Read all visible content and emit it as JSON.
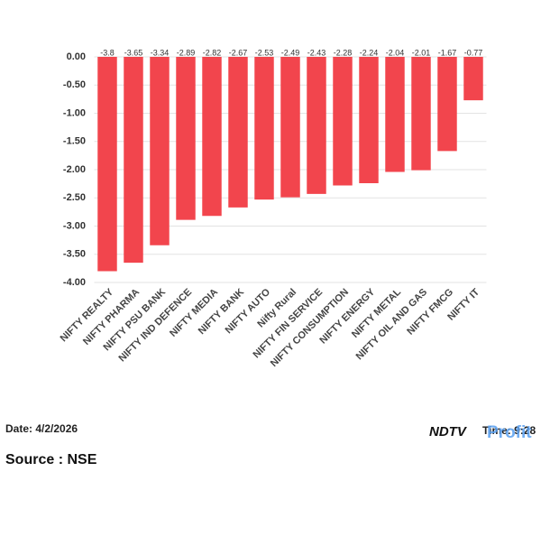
{
  "chart_data": {
    "type": "bar",
    "categories": [
      "NIFTY REALTY",
      "NIFTY PHARMA",
      "NIFTY PSU BANK",
      "NIFTY IND DEFENCE",
      "NIFTY MEDIA",
      "NIFTY BANK",
      "NIFTY AUTO",
      "Nifty Rural",
      "NIFTY FIN SERVICE",
      "NIFTY CONSUMPTION",
      "NIFTY ENERGY",
      "NIFTY METAL",
      "NIFTY OIL AND GAS",
      "NIFTY FMCG",
      "NIFTY IT"
    ],
    "values": [
      -3.8,
      -3.65,
      -3.34,
      -2.89,
      -2.82,
      -2.67,
      -2.53,
      -2.49,
      -2.43,
      -2.28,
      -2.24,
      -2.04,
      -2.01,
      -1.67,
      -0.77
    ],
    "color": "#f2454d",
    "ylim": [
      -4,
      0
    ],
    "yticks": [
      {
        "value": 0,
        "label": "0.00"
      },
      {
        "value": -0.5,
        "label": "-0.50"
      },
      {
        "value": -1,
        "label": "-1.00"
      },
      {
        "value": -1.5,
        "label": "-1.50"
      },
      {
        "value": -2,
        "label": "-2.00"
      },
      {
        "value": -2.5,
        "label": "-2.50"
      },
      {
        "value": -3,
        "label": "-3.00"
      },
      {
        "value": -3.5,
        "label": "-3.50"
      },
      {
        "value": -4,
        "label": "-4.00"
      }
    ],
    "grid": true
  },
  "footer": {
    "date": "Date: 4/2/2026",
    "source": "Source : NSE",
    "time": "Time: 9:28",
    "brand": "NDTV",
    "brand_sub": "Profit"
  }
}
